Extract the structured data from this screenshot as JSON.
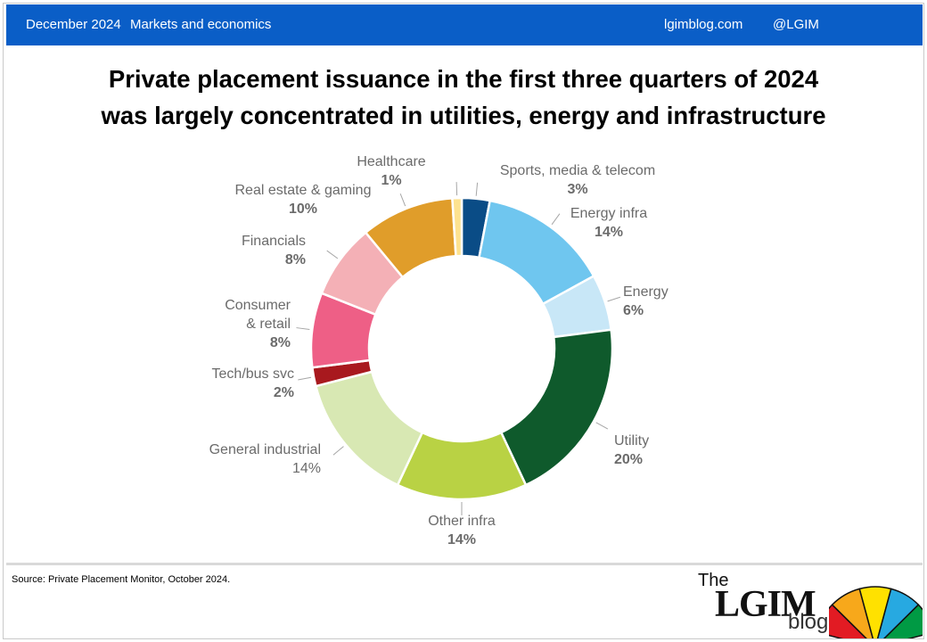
{
  "header": {
    "date": "December 2024",
    "topic": "Markets and economics",
    "site": "lgimblog.com",
    "handle": "@LGIM"
  },
  "chart_data": {
    "type": "pie",
    "style": "donut",
    "title_lines": [
      "Private placement issuance in the first three quarters of 2024",
      "was largely concentrated in utilities, energy and infrastructure"
    ],
    "units": "%",
    "slices": [
      {
        "label": "Sports, media & telecom",
        "value": 3,
        "pct": "3%",
        "color": "#0a4c86"
      },
      {
        "label": "Energy infra",
        "value": 14,
        "pct": "14%",
        "color": "#6fc6ef"
      },
      {
        "label": "Energy",
        "value": 6,
        "pct": "6%",
        "color": "#c8e7f7"
      },
      {
        "label": "Utility",
        "value": 20,
        "pct": "20%",
        "color": "#0f5a2c"
      },
      {
        "label": "Other infra",
        "value": 14,
        "pct": "14%",
        "color": "#b9d244"
      },
      {
        "label": "General industrial",
        "value": 14,
        "pct": "14%",
        "color": "#d8e8b3"
      },
      {
        "label": "Tech/bus svc",
        "value": 2,
        "pct": "2%",
        "color": "#a8191e"
      },
      {
        "label": "Consumer & retail",
        "value": 8,
        "pct": "8%",
        "color": "#ee5f86"
      },
      {
        "label": "Financials",
        "value": 8,
        "pct": "8%",
        "color": "#f4b0b6"
      },
      {
        "label": "Real estate & gaming",
        "value": 10,
        "pct": "10%",
        "color": "#e09d2a"
      },
      {
        "label": "Healthcare",
        "value": 1,
        "pct": "1%",
        "color": "#fde28f"
      }
    ]
  },
  "labels": {
    "sports": {
      "name": "Sports, media & telecom",
      "pct": "3%"
    },
    "energy_infra": {
      "name": "Energy infra",
      "pct": "14%"
    },
    "energy": {
      "name": "Energy",
      "pct": "6%"
    },
    "utility": {
      "name": "Utility",
      "pct": "20%"
    },
    "other_infra": {
      "name": "Other infra",
      "pct": "14%"
    },
    "general_industrial": {
      "name": "General industrial",
      "pct": "14%"
    },
    "tech": {
      "name": "Tech/bus svc",
      "pct": "2%"
    },
    "consumer_1": "Consumer",
    "consumer_2": "& retail",
    "consumer_pct": "8%",
    "financials": {
      "name": "Financials",
      "pct": "8%"
    },
    "real_estate": {
      "name": "Real estate & gaming",
      "pct": "10%"
    },
    "healthcare": {
      "name": "Healthcare",
      "pct": "1%"
    }
  },
  "footer": {
    "source": "Source: Private Placement Monitor, October 2024.",
    "logo_the": "The",
    "logo_lgim": "LGIM",
    "logo_blog": "blog"
  },
  "logo_colors": [
    "#e21b23",
    "#f7a81b",
    "#ffe100",
    "#27a9e1",
    "#009a44"
  ]
}
